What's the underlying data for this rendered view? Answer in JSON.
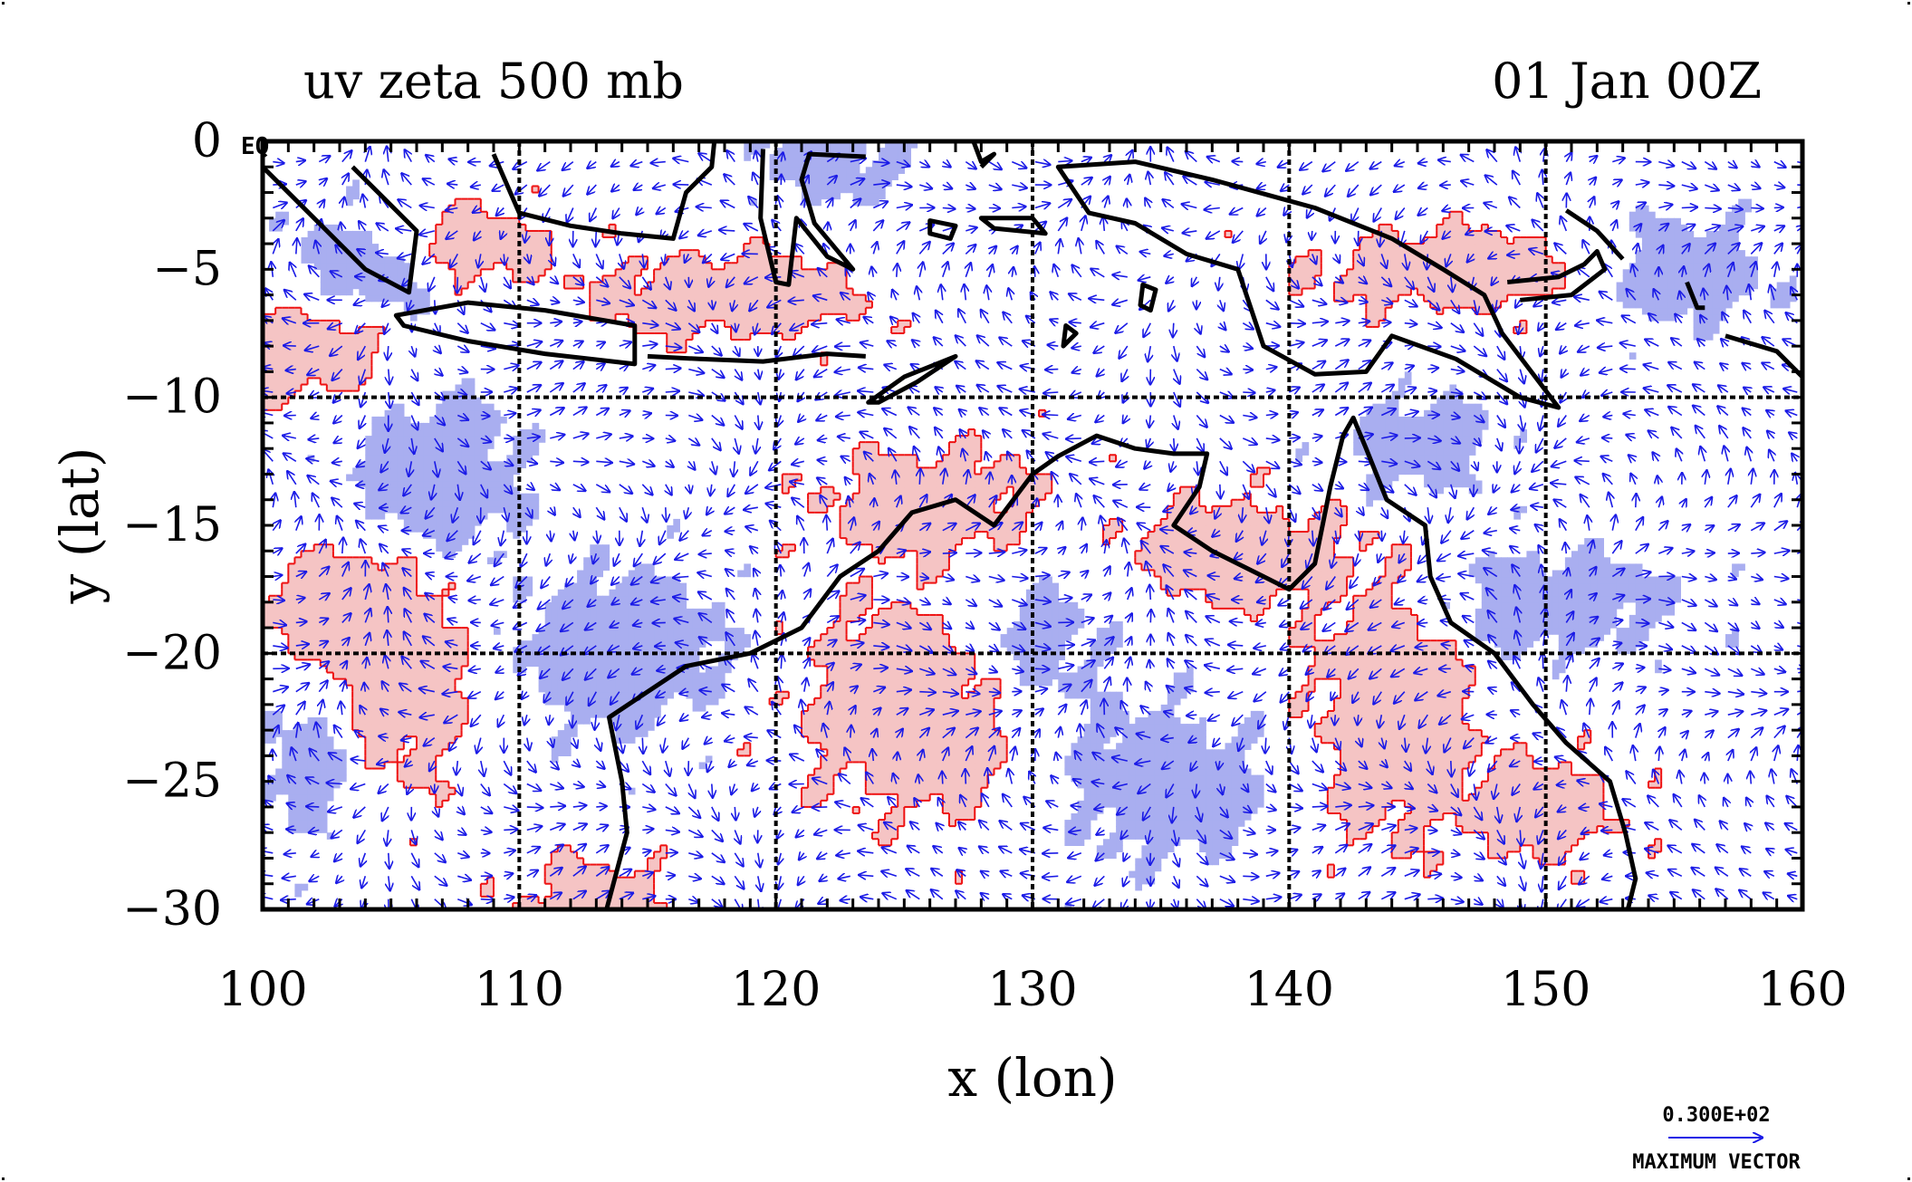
{
  "chart_data": {
    "type": "map",
    "title_left": "uv zeta 500 mb",
    "title_right": "01 Jan 00Z",
    "xlabel": "x (lon)",
    "ylabel": "y (lat)",
    "xlim": [
      100,
      160
    ],
    "ylim": [
      -30,
      0
    ],
    "xticks": [
      100,
      110,
      120,
      130,
      140,
      150,
      160
    ],
    "yticks": [
      0,
      -5,
      -10,
      -15,
      -20,
      -25,
      -30
    ],
    "ytick_labels": [
      "0",
      "−5",
      "−10",
      "−15",
      "−20",
      "−25",
      "−30"
    ],
    "corner_label": "EQ",
    "grid": true,
    "grid_lines_x": [
      110,
      120,
      130,
      140,
      150
    ],
    "grid_lines_y": [
      -10,
      -20
    ],
    "legend": {
      "vector_magnitude": "0.300E+02",
      "vector_caption": "MAXIMUM VECTOR",
      "placement": "bottom-right"
    },
    "colors": {
      "positive_fill": "#f5c4c4",
      "positive_contour": "#ee1111",
      "negative_fill": "#a9aef0",
      "vectors": "#1a1ae6",
      "coastline": "#000000"
    },
    "positive_regions": [
      {
        "center": [
          108,
          -4
        ],
        "spread": [
          3,
          1.5
        ],
        "amp": 1
      },
      {
        "center": [
          118,
          -6
        ],
        "spread": [
          5,
          1.5
        ],
        "amp": 1
      },
      {
        "center": [
          102,
          -8
        ],
        "spread": [
          3,
          2
        ],
        "amp": 1
      },
      {
        "center": [
          105,
          -21
        ],
        "spread": [
          3,
          4
        ],
        "amp": 1
      },
      {
        "center": [
          103,
          -18
        ],
        "spread": [
          3,
          2
        ],
        "amp": 0.8
      },
      {
        "center": [
          126,
          -22
        ],
        "spread": [
          5,
          4
        ],
        "amp": 1
      },
      {
        "center": [
          126,
          -14
        ],
        "spread": [
          4,
          2
        ],
        "amp": 0.9
      },
      {
        "center": [
          138,
          -16
        ],
        "spread": [
          4,
          2
        ],
        "amp": 0.9
      },
      {
        "center": [
          144,
          -22
        ],
        "spread": [
          3,
          5
        ],
        "amp": 1
      },
      {
        "center": [
          147,
          -5
        ],
        "spread": [
          6,
          1.5
        ],
        "amp": 0.9
      },
      {
        "center": [
          150,
          -26
        ],
        "spread": [
          3,
          2
        ],
        "amp": 0.8
      },
      {
        "center": [
          113,
          -30
        ],
        "spread": [
          3,
          2
        ],
        "amp": 0.8
      }
    ],
    "negative_regions": [
      {
        "center": [
          104,
          -5
        ],
        "spread": [
          3,
          2
        ],
        "amp": 1
      },
      {
        "center": [
          107,
          -13
        ],
        "spread": [
          3,
          3
        ],
        "amp": 1
      },
      {
        "center": [
          114,
          -20
        ],
        "spread": [
          4,
          3
        ],
        "amp": 1
      },
      {
        "center": [
          102,
          -24
        ],
        "spread": [
          2,
          3
        ],
        "amp": 0.9
      },
      {
        "center": [
          130,
          -20
        ],
        "spread": [
          3,
          3
        ],
        "amp": 0.9
      },
      {
        "center": [
          135,
          -25
        ],
        "spread": [
          4,
          3
        ],
        "amp": 0.9
      },
      {
        "center": [
          150,
          -18
        ],
        "spread": [
          5,
          2
        ],
        "amp": 0.9
      },
      {
        "center": [
          155,
          -5
        ],
        "spread": [
          4,
          2
        ],
        "amp": 0.9
      },
      {
        "center": [
          122,
          -1
        ],
        "spread": [
          3,
          1.5
        ],
        "amp": 0.8
      },
      {
        "center": [
          145,
          -12
        ],
        "spread": [
          3,
          2
        ],
        "amp": 0.8
      }
    ],
    "coastlines": [
      {
        "name": "Australia",
        "closed": false,
        "points": [
          [
            113.4,
            -30
          ],
          [
            114.2,
            -27
          ],
          [
            114,
            -25
          ],
          [
            113.5,
            -22.5
          ],
          [
            115,
            -21.5
          ],
          [
            116.5,
            -20.5
          ],
          [
            119,
            -20
          ],
          [
            121,
            -19
          ],
          [
            122.5,
            -17
          ],
          [
            124,
            -16
          ],
          [
            125.3,
            -14.5
          ],
          [
            127,
            -14
          ],
          [
            128.5,
            -15
          ],
          [
            130,
            -13
          ],
          [
            131,
            -12.3
          ],
          [
            132.5,
            -11.5
          ],
          [
            134,
            -12
          ],
          [
            135.5,
            -12.2
          ],
          [
            136.8,
            -12.2
          ],
          [
            136.5,
            -13.5
          ],
          [
            135.5,
            -15
          ],
          [
            137,
            -16
          ],
          [
            139,
            -17
          ],
          [
            140,
            -17.5
          ],
          [
            141,
            -16.5
          ],
          [
            141.6,
            -13.5
          ],
          [
            142.1,
            -11.5
          ],
          [
            142.5,
            -10.8
          ],
          [
            143,
            -12
          ],
          [
            143.8,
            -14
          ],
          [
            145.3,
            -15
          ],
          [
            145.5,
            -17
          ],
          [
            146.3,
            -18.8
          ],
          [
            148,
            -20
          ],
          [
            149.5,
            -22
          ],
          [
            150.8,
            -23.5
          ],
          [
            152.5,
            -25
          ],
          [
            153.1,
            -27
          ],
          [
            153.5,
            -28.8
          ],
          [
            153.2,
            -30
          ]
        ]
      },
      {
        "name": "New Guinea",
        "closed": true,
        "points": [
          [
            131,
            -1
          ],
          [
            134,
            -0.8
          ],
          [
            137,
            -1.5
          ],
          [
            141,
            -2.6
          ],
          [
            144,
            -3.8
          ],
          [
            146,
            -5
          ],
          [
            147.6,
            -6
          ],
          [
            148.3,
            -7.5
          ],
          [
            150.5,
            -10.4
          ],
          [
            149,
            -10
          ],
          [
            146.5,
            -8.5
          ],
          [
            144,
            -7.6
          ],
          [
            143,
            -9
          ],
          [
            141,
            -9.1
          ],
          [
            139,
            -8
          ],
          [
            138,
            -5
          ],
          [
            136,
            -4.4
          ],
          [
            134,
            -3.2
          ],
          [
            132.2,
            -2.8
          ],
          [
            131,
            -1
          ]
        ]
      },
      {
        "name": "Java",
        "closed": true,
        "points": [
          [
            105.2,
            -6.8
          ],
          [
            108,
            -6.3
          ],
          [
            111,
            -6.6
          ],
          [
            114.5,
            -7.2
          ],
          [
            114.5,
            -8.7
          ],
          [
            111,
            -8.3
          ],
          [
            108,
            -7.8
          ],
          [
            105.5,
            -7.2
          ],
          [
            105.2,
            -6.8
          ]
        ]
      },
      {
        "name": "Lesser Sundas",
        "closed": false,
        "points": [
          [
            115,
            -8.4
          ],
          [
            117,
            -8.5
          ],
          [
            119.5,
            -8.6
          ],
          [
            122,
            -8.3
          ],
          [
            123.5,
            -8.4
          ]
        ]
      },
      {
        "name": "Timor",
        "closed": true,
        "points": [
          [
            123.6,
            -10.2
          ],
          [
            125,
            -9.2
          ],
          [
            127,
            -8.4
          ],
          [
            125.5,
            -9.4
          ],
          [
            124,
            -10.2
          ],
          [
            123.6,
            -10.2
          ]
        ]
      },
      {
        "name": "Sumatra",
        "closed": false,
        "points": [
          [
            100,
            -1
          ],
          [
            102,
            -3
          ],
          [
            104,
            -5
          ],
          [
            105.7,
            -5.9
          ],
          [
            106,
            -3.5
          ],
          [
            104.5,
            -2
          ],
          [
            103.5,
            -1
          ]
        ]
      },
      {
        "name": "Borneo",
        "closed": false,
        "points": [
          [
            109,
            -0.5
          ],
          [
            110,
            -2.8
          ],
          [
            112,
            -3.3
          ],
          [
            114,
            -3.6
          ],
          [
            116,
            -3.8
          ],
          [
            116.5,
            -2
          ],
          [
            117.5,
            -1
          ],
          [
            117.6,
            0
          ]
        ]
      },
      {
        "name": "Sulawesi",
        "closed": false,
        "points": [
          [
            119.5,
            -0.3
          ],
          [
            119.4,
            -3
          ],
          [
            120,
            -5.5
          ],
          [
            120.5,
            -5.6
          ],
          [
            120.8,
            -3
          ],
          [
            122,
            -4.5
          ],
          [
            123,
            -5
          ],
          [
            121.5,
            -3.2
          ],
          [
            121,
            -1.5
          ],
          [
            121.3,
            -0.5
          ],
          [
            123.5,
            -0.6
          ]
        ]
      },
      {
        "name": "Halmahera",
        "closed": false,
        "points": [
          [
            127.7,
            0
          ],
          [
            128,
            -0.8
          ],
          [
            128.5,
            -0.5
          ],
          [
            128,
            -1
          ]
        ]
      },
      {
        "name": "Seram",
        "closed": true,
        "points": [
          [
            128,
            -3
          ],
          [
            130,
            -3
          ],
          [
            130.5,
            -3.6
          ],
          [
            128.5,
            -3.4
          ],
          [
            128,
            -3
          ]
        ]
      },
      {
        "name": "Buru",
        "closed": true,
        "points": [
          [
            126,
            -3.1
          ],
          [
            127,
            -3.3
          ],
          [
            126.8,
            -3.8
          ],
          [
            126,
            -3.6
          ],
          [
            126,
            -3.1
          ]
        ]
      },
      {
        "name": "Tanimbar",
        "closed": true,
        "points": [
          [
            131.3,
            -7.2
          ],
          [
            131.7,
            -7.5
          ],
          [
            131.2,
            -8
          ],
          [
            131.3,
            -7.2
          ]
        ]
      },
      {
        "name": "Aru",
        "closed": true,
        "points": [
          [
            134.3,
            -5.6
          ],
          [
            134.8,
            -5.8
          ],
          [
            134.6,
            -6.6
          ],
          [
            134.2,
            -6.4
          ],
          [
            134.3,
            -5.6
          ]
        ]
      },
      {
        "name": "New Britain",
        "closed": false,
        "points": [
          [
            148.5,
            -5.5
          ],
          [
            150.5,
            -5.3
          ],
          [
            151.5,
            -4.8
          ],
          [
            152,
            -4.3
          ],
          [
            152.3,
            -5
          ],
          [
            151,
            -6
          ],
          [
            149,
            -6.2
          ]
        ]
      },
      {
        "name": "New Ireland",
        "closed": false,
        "points": [
          [
            150.8,
            -2.7
          ],
          [
            152,
            -3.5
          ],
          [
            153,
            -4.6
          ]
        ]
      },
      {
        "name": "Bougainville",
        "closed": false,
        "points": [
          [
            155.5,
            -5.5
          ],
          [
            155.9,
            -6.5
          ],
          [
            156.2,
            -6.5
          ]
        ]
      },
      {
        "name": "Solomons",
        "closed": false,
        "points": [
          [
            157,
            -7.6
          ],
          [
            159,
            -8.2
          ],
          [
            160,
            -9.2
          ]
        ]
      }
    ]
  }
}
